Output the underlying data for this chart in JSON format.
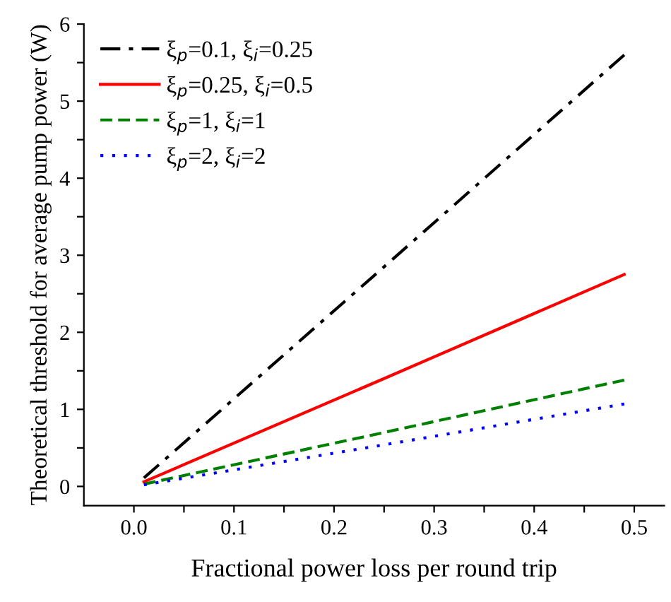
{
  "chart_data": {
    "type": "line",
    "xlabel": "Fractional power loss per round trip",
    "ylabel": "Theoretical threshold for average pump power (W)",
    "x": [
      0.01,
      0.25,
      0.49
    ],
    "series": [
      {
        "name": "ξ$_{p}$=0.1, ξ$_{i}$=0.25",
        "color": "#000000",
        "line_style": "dashdot",
        "values": [
          0.11,
          2.85,
          5.6
        ]
      },
      {
        "name": "ξ$_{p}$=0.25, ξ$_{i}$=0.5",
        "color": "#ff0000",
        "line_style": "solid",
        "values": [
          0.06,
          1.4,
          2.75
        ]
      },
      {
        "name": "ξ$_{p}$=1, ξ$_{i}$=1",
        "color": "#008000",
        "line_style": "dashed",
        "values": [
          0.03,
          0.7,
          1.38
        ]
      },
      {
        "name": "ξ$_{p}$=2, ξ$_{i}$=2",
        "color": "#0000ff",
        "line_style": "dotted",
        "values": [
          0.02,
          0.54,
          1.07
        ]
      }
    ],
    "xlim": [
      -0.05,
      0.53
    ],
    "ylim": [
      -0.25,
      6
    ],
    "xticks": [
      {
        "value": 0,
        "label": "0.0"
      },
      {
        "value": 0.05,
        "label": null
      },
      0.1,
      {
        "value": 0.15,
        "label": null
      },
      0.2,
      {
        "value": 0.25,
        "label": null
      },
      0.3,
      {
        "value": 0.35,
        "label": null
      },
      0.4,
      {
        "value": 0.45,
        "label": null
      },
      0.5
    ],
    "yticks": [
      0,
      {
        "value": 0.5,
        "label": null
      },
      1,
      {
        "value": 1.5,
        "label": null
      },
      2,
      {
        "value": 2.5,
        "label": null
      },
      3,
      {
        "value": 3.5,
        "label": null
      },
      4,
      {
        "value": 4.5,
        "label": null
      },
      5,
      {
        "value": 5.5,
        "label": null
      },
      6
    ],
    "grid": false,
    "legend": "top left",
    "marker": "none"
  }
}
